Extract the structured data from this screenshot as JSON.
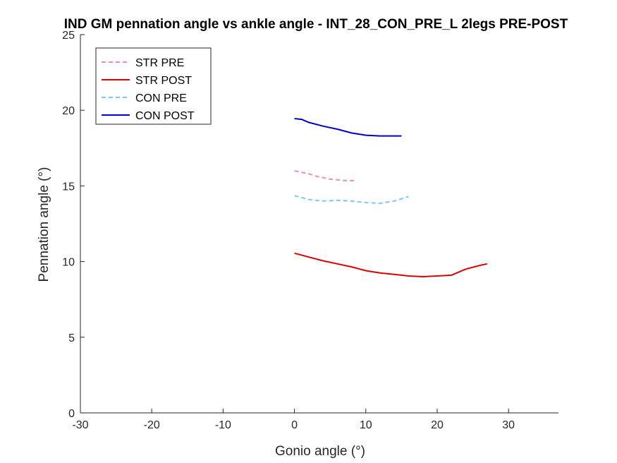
{
  "chart_data": {
    "type": "line",
    "title": "IND GM pennation angle vs ankle angle - INT_28_CON_PRE_L 2legs PRE-POST",
    "xlabel": "Gonio angle (°)",
    "ylabel": "Pennation angle (°)",
    "xlim": [
      -30,
      37
    ],
    "ylim": [
      0,
      25
    ],
    "xticks": [
      -30,
      -20,
      -10,
      0,
      10,
      20,
      30
    ],
    "yticks": [
      0,
      5,
      10,
      15,
      20,
      25
    ],
    "xtick_labels": [
      "-30",
      "-20",
      "-10",
      "0",
      "10",
      "20",
      "30"
    ],
    "ytick_labels": [
      "0",
      "5",
      "10",
      "15",
      "20",
      "25"
    ],
    "grid": false,
    "legend_position": "top-left",
    "series": [
      {
        "name": "STR PRE",
        "color": "#f08cb4",
        "dash": "dashed",
        "x": [
          0,
          1,
          2,
          3,
          4,
          5,
          6,
          7,
          8,
          8.5
        ],
        "y": [
          16.0,
          15.9,
          15.8,
          15.65,
          15.55,
          15.45,
          15.4,
          15.35,
          15.35,
          15.35
        ]
      },
      {
        "name": "STR POST",
        "color": "#dd0000",
        "dash": "solid",
        "x": [
          0,
          2,
          4,
          6,
          8,
          10,
          12,
          14,
          16,
          18,
          20,
          22,
          24,
          26,
          27
        ],
        "y": [
          10.55,
          10.3,
          10.05,
          9.85,
          9.65,
          9.4,
          9.25,
          9.15,
          9.05,
          9.0,
          9.05,
          9.1,
          9.5,
          9.75,
          9.85
        ]
      },
      {
        "name": "CON PRE",
        "color": "#7ec8f0",
        "dash": "dashed",
        "x": [
          0,
          2,
          4,
          6,
          8,
          10,
          12,
          14,
          16
        ],
        "y": [
          14.35,
          14.1,
          14.0,
          14.05,
          14.0,
          13.9,
          13.85,
          14.0,
          14.3
        ]
      },
      {
        "name": "CON POST",
        "color": "#0000cc",
        "dash": "solid",
        "x": [
          0,
          1,
          2,
          4,
          6,
          8,
          10,
          12,
          14,
          15
        ],
        "y": [
          19.45,
          19.4,
          19.2,
          18.95,
          18.75,
          18.5,
          18.35,
          18.3,
          18.3,
          18.3
        ]
      }
    ]
  }
}
